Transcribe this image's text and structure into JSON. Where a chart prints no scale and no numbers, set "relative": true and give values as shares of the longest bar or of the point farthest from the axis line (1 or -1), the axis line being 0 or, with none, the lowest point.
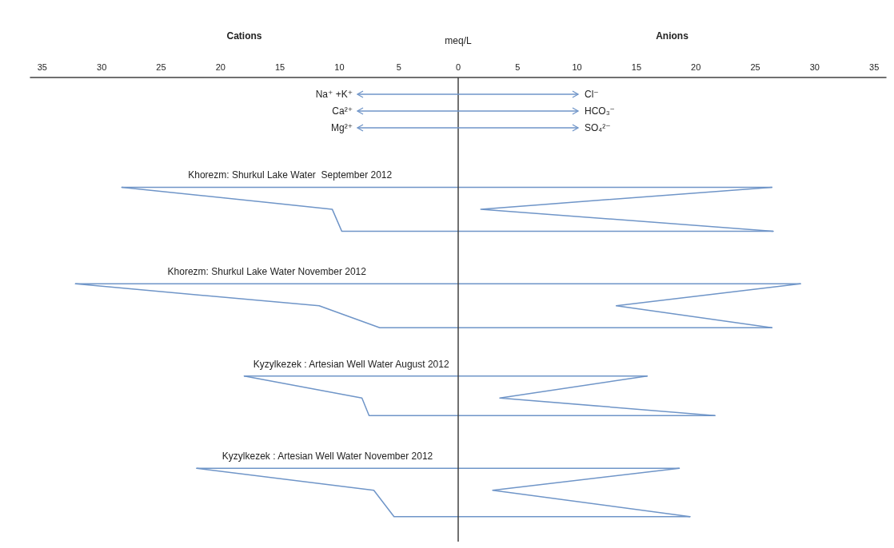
{
  "chart_data": {
    "type": "line",
    "xlabel": "meq/L",
    "relative": true,
    "tick_labels": "x",
    "marker": "none",
    "line_style": "solid",
    "xlim": [
      -36,
      36
    ],
    "xticks": [
      {
        "value": -35,
        "label": "35"
      },
      {
        "value": -30,
        "label": "30"
      },
      {
        "value": -25,
        "label": "25"
      },
      {
        "value": -20,
        "label": "20"
      },
      {
        "value": -15,
        "label": "15"
      },
      {
        "value": -10,
        "label": "10"
      },
      {
        "value": -5,
        "label": "5"
      },
      0,
      5,
      10,
      15,
      20,
      25,
      30,
      35
    ],
    "ref_lines": [
      {
        "axis": "x",
        "value": 0,
        "color": "#404040"
      }
    ],
    "series": [
      {
        "name": "Khorezm: Shurkul Lake Water  September 2012",
        "color": "#6f95c8",
        "x": [
          -28.3,
          26.4
        ],
        "values": [
          -0.25,
          -0.25
        ]
      },
      {
        "color": "#6f95c8",
        "x": [
          26.4,
          1.9,
          26.5
        ],
        "values": [
          -0.25,
          -0.3,
          -0.35
        ]
      },
      {
        "color": "#6f95c8",
        "x": [
          -28.3,
          -10.6,
          -9.8,
          26.5
        ],
        "values": [
          -0.25,
          -0.3,
          -0.35,
          -0.35
        ]
      },
      {
        "name": "Khorezm: Shurkul Lake Water November 2012",
        "color": "#6f95c8",
        "x": [
          -32.2,
          28.8
        ],
        "values": [
          -0.47,
          -0.47
        ]
      },
      {
        "color": "#6f95c8",
        "x": [
          28.8,
          13.3,
          26.4
        ],
        "values": [
          -0.47,
          -0.52,
          -0.57
        ]
      },
      {
        "color": "#6f95c8",
        "x": [
          -32.2,
          -11.7,
          -6.6,
          26.4
        ],
        "values": [
          -0.47,
          -0.52,
          -0.57,
          -0.57
        ]
      },
      {
        "name": "Kyzylkezek : Artesian Well Water August 2012",
        "color": "#6f95c8",
        "x": [
          -18,
          15.9
        ],
        "values": [
          -0.68,
          -0.68
        ]
      },
      {
        "color": "#6f95c8",
        "x": [
          15.9,
          3.5,
          21.6
        ],
        "values": [
          -0.68,
          -0.73,
          -0.77
        ]
      },
      {
        "color": "#6f95c8",
        "x": [
          -18,
          -8.1,
          -7.5,
          21.6
        ],
        "values": [
          -0.68,
          -0.73,
          -0.77,
          -0.77
        ]
      },
      {
        "name": "Kyzylkezek : Artesian Well Water November 2012",
        "color": "#6f95c8",
        "x": [
          -22,
          18.6
        ],
        "values": [
          -0.89,
          -0.89
        ]
      },
      {
        "color": "#6f95c8",
        "x": [
          18.6,
          2.9,
          19.5
        ],
        "values": [
          -0.89,
          -0.94,
          -1
        ]
      },
      {
        "color": "#6f95c8",
        "x": [
          -22,
          -7.1,
          -5.4,
          19.5
        ],
        "values": [
          -0.89,
          -0.94,
          -1,
          -1
        ]
      }
    ],
    "annotations": [
      "Cations",
      "Anions",
      "Na⁺ +K⁺",
      "Cl⁻",
      "Ca²⁺",
      "HCO₃⁻",
      "Mg²⁺",
      "SO₄²⁻"
    ]
  }
}
